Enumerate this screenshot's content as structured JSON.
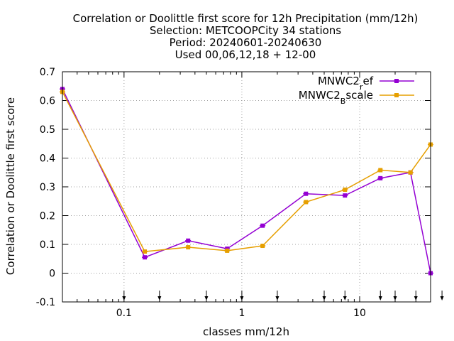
{
  "chart_data": {
    "type": "line",
    "title_lines": [
      "Correlation or Doolittle first score  for 12h Precipitation (mm/12h)",
      "Selection: METCOOPCity      34 stations",
      "Period: 20240601-20240630",
      "Used 00,06,12,18 + 12-00"
    ],
    "xlabel": "classes mm/12h",
    "ylabel": "Correlation or Doolittle first score",
    "x_scale": "log",
    "xlim": [
      0.03,
      40
    ],
    "ylim": [
      -0.1,
      0.7
    ],
    "x_ticks": [
      0.1,
      1,
      10
    ],
    "x_tick_labels": [
      "0.1",
      "1",
      "10"
    ],
    "y_ticks": [
      -0.1,
      0,
      0.1,
      0.2,
      0.3,
      0.4,
      0.5,
      0.6,
      0.7
    ],
    "y_tick_labels": [
      "-0.1",
      "0",
      "0.1",
      "0.2",
      "0.3",
      "0.4",
      "0.5",
      "0.6",
      "0.7"
    ],
    "grid": true,
    "legend_position": "top-right",
    "class_arrows_x": [
      0.1,
      0.2,
      0.5,
      1,
      2,
      5,
      7.5,
      15,
      20,
      30,
      50
    ],
    "x": [
      0.03,
      0.15,
      0.35,
      0.75,
      1.5,
      3.5,
      7.5,
      15,
      27,
      40
    ],
    "series": [
      {
        "name": "MNWC2_ref",
        "name_main": "MNWC2",
        "name_sub": "r",
        "name_rest": "ef",
        "color": "#9400d3",
        "values": [
          0.64,
          0.055,
          0.113,
          0.085,
          0.165,
          0.276,
          0.27,
          0.33,
          0.35,
          0.0
        ]
      },
      {
        "name": "MNWC2_Bscale",
        "name_main": "MNWC2",
        "name_sub": "B",
        "name_rest": "scale",
        "color": "#e69f00",
        "values": [
          0.63,
          0.075,
          0.09,
          0.078,
          0.095,
          0.247,
          0.29,
          0.358,
          0.35,
          0.447
        ]
      }
    ]
  }
}
